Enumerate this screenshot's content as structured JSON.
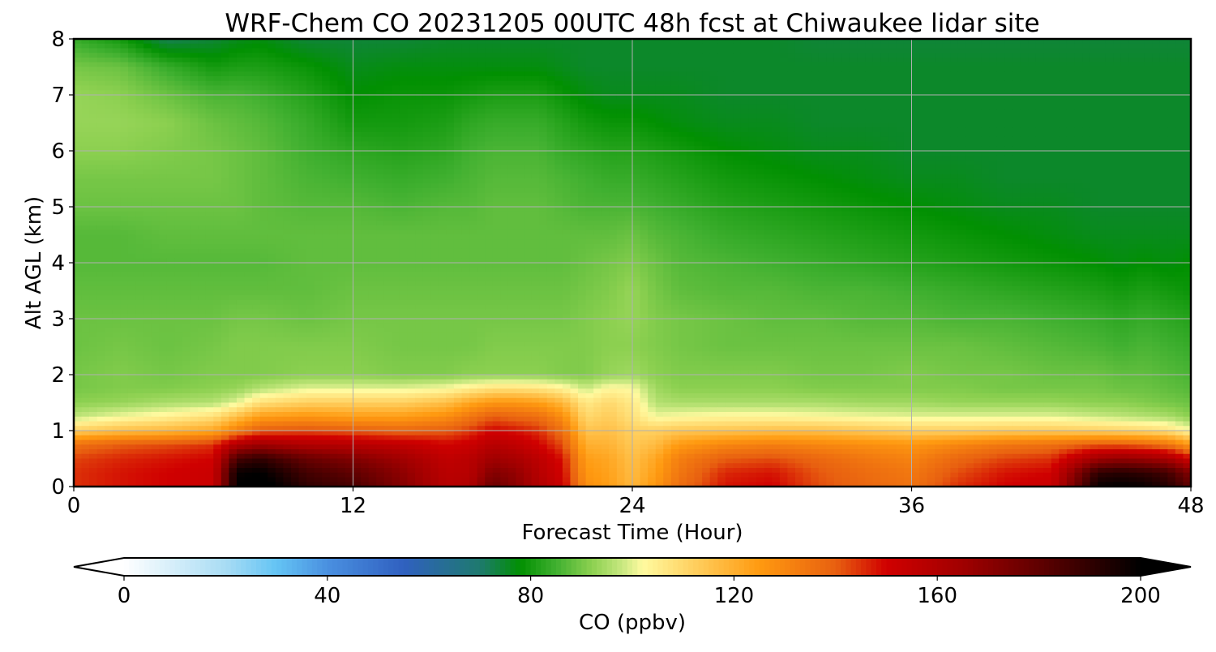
{
  "chart_data": {
    "type": "heatmap",
    "title": "WRF-Chem CO  20231205 00UTC 48h fcst at Chiwaukee lidar site",
    "xlabel": "Forecast Time (Hour)",
    "ylabel": "Alt AGL (km)",
    "xlim": [
      0,
      48
    ],
    "ylim": [
      0,
      8
    ],
    "xticks": [
      0,
      12,
      24,
      36,
      48
    ],
    "yticks": [
      0,
      1,
      2,
      3,
      4,
      5,
      6,
      7,
      8
    ],
    "grid": true,
    "x": [
      0,
      2,
      4,
      6,
      7,
      8,
      10,
      12,
      14,
      16,
      17,
      18,
      19,
      20,
      21,
      22,
      23,
      24,
      25,
      26,
      28,
      30,
      32,
      34,
      36,
      38,
      40,
      42,
      44,
      45,
      46,
      47,
      48
    ],
    "y": [
      0,
      0.25,
      0.5,
      0.75,
      1.0,
      1.25,
      1.5,
      1.75,
      2.0,
      2.5,
      3.0,
      3.5,
      4.0,
      4.5,
      5.0,
      5.5,
      6.0,
      6.5,
      7.0,
      7.5,
      8.0
    ],
    "values": [
      [
        145,
        148,
        150,
        152,
        200,
        205,
        190,
        185,
        172,
        158,
        160,
        178,
        170,
        160,
        152,
        128,
        124,
        118,
        126,
        136,
        148,
        150,
        142,
        138,
        135,
        145,
        150,
        152,
        198,
        200,
        198,
        192,
        180
      ],
      [
        145,
        148,
        150,
        152,
        198,
        200,
        186,
        180,
        170,
        157,
        158,
        172,
        168,
        158,
        150,
        126,
        123,
        117,
        124,
        134,
        146,
        148,
        141,
        137,
        134,
        142,
        148,
        150,
        190,
        192,
        190,
        186,
        172
      ],
      [
        143,
        146,
        148,
        150,
        185,
        190,
        178,
        172,
        165,
        155,
        157,
        165,
        162,
        156,
        148,
        124,
        122,
        116,
        122,
        132,
        140,
        142,
        138,
        134,
        131,
        138,
        143,
        145,
        165,
        168,
        166,
        162,
        150
      ],
      [
        136,
        140,
        142,
        145,
        160,
        165,
        160,
        158,
        155,
        150,
        152,
        158,
        155,
        150,
        142,
        120,
        119,
        114,
        117,
        125,
        130,
        132,
        130,
        128,
        126,
        130,
        134,
        136,
        140,
        140,
        138,
        135,
        125
      ],
      [
        112,
        116,
        118,
        122,
        132,
        140,
        142,
        140,
        138,
        140,
        144,
        150,
        148,
        145,
        136,
        115,
        116,
        112,
        112,
        114,
        115,
        116,
        116,
        114,
        112,
        112,
        113,
        113,
        112,
        111,
        110,
        108,
        102
      ],
      [
        97,
        101,
        104,
        108,
        116,
        124,
        126,
        124,
        124,
        128,
        134,
        140,
        138,
        136,
        128,
        110,
        113,
        108,
        101,
        102,
        103,
        103,
        102,
        101,
        100,
        100,
        100,
        100,
        98,
        97,
        96,
        95,
        92
      ],
      [
        92,
        93,
        95,
        96,
        100,
        108,
        112,
        112,
        112,
        116,
        122,
        126,
        126,
        124,
        118,
        106,
        110,
        106,
        96,
        95,
        95,
        95,
        95,
        94,
        94,
        93,
        93,
        93,
        92,
        92,
        91,
        90,
        89
      ],
      [
        90,
        91,
        91,
        92,
        93,
        96,
        100,
        100,
        100,
        102,
        105,
        108,
        108,
        107,
        104,
        98,
        103,
        102,
        94,
        92,
        92,
        92,
        91,
        91,
        91,
        91,
        90,
        90,
        90,
        89,
        89,
        88,
        87
      ],
      [
        90,
        91,
        90,
        91,
        91,
        91,
        92,
        92,
        91,
        91,
        92,
        92,
        92,
        92,
        91,
        91,
        93,
        94,
        92,
        91,
        91,
        91,
        90,
        90,
        91,
        90,
        90,
        89,
        89,
        88,
        88,
        87,
        86
      ],
      [
        89,
        90,
        89,
        90,
        91,
        91,
        91,
        91,
        90,
        90,
        90,
        91,
        91,
        91,
        91,
        91,
        92,
        92,
        91,
        90,
        89,
        89,
        89,
        89,
        89,
        89,
        88,
        87,
        86,
        85,
        86,
        85,
        84
      ],
      [
        89,
        89,
        89,
        89,
        90,
        90,
        89,
        90,
        90,
        90,
        90,
        90,
        90,
        90,
        90,
        91,
        92,
        93,
        91,
        90,
        89,
        88,
        88,
        87,
        87,
        86,
        86,
        85,
        84,
        83,
        84,
        83,
        82
      ],
      [
        88,
        88,
        88,
        88,
        88,
        88,
        88,
        89,
        89,
        89,
        89,
        89,
        89,
        89,
        89,
        90,
        91,
        93,
        90,
        88,
        87,
        87,
        86,
        86,
        85,
        84,
        83,
        82,
        81,
        80,
        81,
        80,
        79
      ],
      [
        87,
        87,
        87,
        87,
        87,
        87,
        88,
        88,
        88,
        88,
        88,
        88,
        88,
        88,
        88,
        89,
        90,
        91,
        89,
        87,
        86,
        85,
        84,
        83,
        82,
        81,
        80,
        79,
        78,
        77,
        78,
        77,
        78
      ],
      [
        87,
        87,
        88,
        88,
        88,
        88,
        88,
        88,
        88,
        88,
        88,
        88,
        88,
        88,
        88,
        88,
        88,
        89,
        87,
        86,
        84,
        83,
        82,
        81,
        80,
        79,
        78,
        77,
        76,
        76,
        76,
        76,
        76
      ],
      [
        89,
        89,
        89,
        89,
        89,
        88,
        87,
        87,
        86,
        87,
        87,
        88,
        88,
        88,
        87,
        86,
        86,
        86,
        85,
        84,
        82,
        81,
        80,
        79,
        78,
        77,
        76,
        76,
        75,
        75,
        75,
        75,
        75
      ],
      [
        90,
        90,
        90,
        90,
        89,
        88,
        86,
        85,
        84,
        85,
        86,
        87,
        87,
        87,
        86,
        85,
        84,
        84,
        83,
        82,
        80,
        79,
        78,
        77,
        76,
        76,
        75,
        75,
        75,
        75,
        75,
        75,
        75
      ],
      [
        92,
        92,
        91,
        90,
        89,
        88,
        85,
        83,
        82,
        83,
        85,
        86,
        86,
        86,
        84,
        83,
        82,
        82,
        81,
        80,
        78,
        77,
        76,
        76,
        75,
        75,
        75,
        75,
        75,
        75,
        75,
        75,
        75
      ],
      [
        93,
        93,
        92,
        89,
        88,
        87,
        84,
        80,
        80,
        81,
        83,
        84,
        84,
        84,
        82,
        80,
        79,
        79,
        78,
        77,
        76,
        76,
        75,
        75,
        75,
        75,
        75,
        75,
        75,
        75,
        75,
        75,
        75
      ],
      [
        93,
        92,
        89,
        86,
        86,
        85,
        82,
        78,
        79,
        79,
        80,
        81,
        81,
        81,
        79,
        77,
        76,
        76,
        76,
        76,
        75,
        75,
        75,
        75,
        75,
        75,
        75,
        75,
        75,
        75,
        75,
        75,
        75
      ],
      [
        90,
        89,
        84,
        80,
        81,
        81,
        79,
        76,
        77,
        77,
        77,
        77,
        77,
        77,
        76,
        75,
        75,
        75,
        75,
        75,
        75,
        75,
        75,
        75,
        75,
        75,
        75,
        75,
        75,
        75,
        75,
        75,
        75
      ],
      [
        84,
        80,
        72,
        74,
        76,
        77,
        74,
        74,
        74,
        75,
        75,
        75,
        75,
        75,
        75,
        75,
        75,
        75,
        75,
        75,
        75,
        75,
        74,
        74,
        74,
        74,
        74,
        74,
        74,
        74,
        74,
        74,
        74
      ]
    ],
    "colorbar": {
      "label": "CO  (ppbv)",
      "min": 0,
      "max": 200,
      "ticks": [
        0,
        40,
        80,
        120,
        160,
        200
      ],
      "extend": "both",
      "orientation": "horizontal"
    },
    "colormap": {
      "values": [
        0,
        20,
        30,
        40,
        55,
        70,
        78,
        85,
        92,
        98,
        102,
        112,
        125,
        140,
        150,
        165,
        180,
        190,
        200
      ],
      "colors": [
        "#ffffff",
        "#a8dcf4",
        "#64c4f4",
        "#4a90e0",
        "#3060c0",
        "#1e7a6e",
        "#019001",
        "#40b030",
        "#8cd050",
        "#c8e880",
        "#fffaa0",
        "#ffd060",
        "#ff9a10",
        "#e86010",
        "#d00000",
        "#a00000",
        "#600000",
        "#300000",
        "#000000"
      ]
    }
  }
}
